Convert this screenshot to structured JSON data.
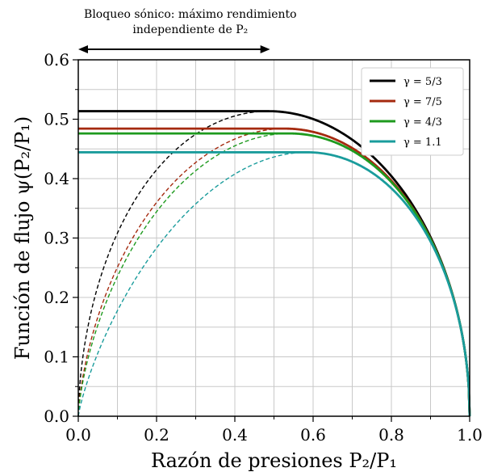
{
  "chart_data": {
    "type": "line",
    "xlabel": "Razón de presiones P₂/P₁",
    "ylabel": "Función de flujo ψ(P₂/P₁)",
    "xlim": [
      0,
      1
    ],
    "ylim": [
      0,
      0.6
    ],
    "xticks": [
      "0.0",
      "0.2",
      "0.4",
      "0.6",
      "0.8",
      "1.0"
    ],
    "xtick_values": [
      0,
      0.2,
      0.4,
      0.6,
      0.8,
      1.0
    ],
    "yticks": [
      "0.0",
      "0.1",
      "0.2",
      "0.3",
      "0.4",
      "0.5",
      "0.6"
    ],
    "ytick_values": [
      0,
      0.1,
      0.2,
      0.3,
      0.4,
      0.5,
      0.6
    ],
    "grid": true,
    "legend_position": "top-right",
    "annotation": {
      "line1": "Bloqueo sónico: máximo rendimiento",
      "line2": "independiente de P₂",
      "arrow_x": [
        0,
        0.49
      ]
    },
    "series": [
      {
        "name": "γ = 5/3",
        "gamma": 1.6667,
        "color": "#000000"
      },
      {
        "name": "γ = 7/5",
        "gamma": 1.4,
        "color": "#a52a0f"
      },
      {
        "name": "γ = 4/3",
        "gamma": 1.3333,
        "color": "#1e9a1e"
      },
      {
        "name": "γ = 1.1",
        "gamma": 1.1,
        "color": "#1a9c9c"
      }
    ],
    "line_styles": {
      "solid": "choked region flat at ψ_max for P₂/P₁ < critical ratio",
      "dashed": "theoretical ψ for P₂/P₁ below critical ratio"
    }
  }
}
